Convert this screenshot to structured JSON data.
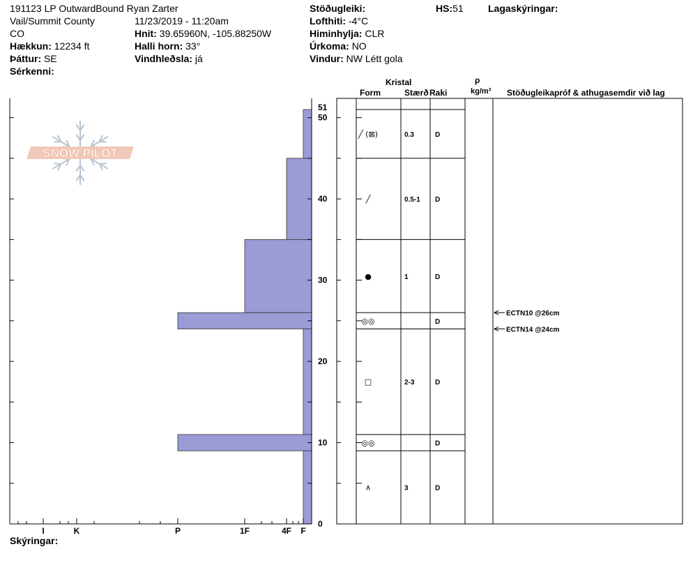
{
  "header": {
    "title": "191123 LP OutwardBound Ryan Zarter",
    "location": "Vail/Summit County",
    "state": "CO",
    "elevation_label": "Hækkun:",
    "elevation_value": "12234 ft",
    "aspect_label": "Þáttur:",
    "aspect_value": "SE",
    "features_label": "Sérkenni:",
    "datetime": "11/23/2019 - 11:20am",
    "coords_label": "Hnit:",
    "coords_value": "39.65960N, -105.88250W",
    "slope_label": "Halli horn:",
    "slope_value": "33°",
    "wind_loading_label": "Vindhleðsla:",
    "wind_loading_value": "já",
    "stability_label": "Stöðugleiki:",
    "air_temp_label": "Lofthiti:",
    "air_temp_value": "-4°C",
    "sky_label": "Himinhylja:",
    "sky_value": "CLR",
    "precip_label": "Úrkoma:",
    "precip_value": "NO",
    "wind_label": "Vindur:",
    "wind_value": "NW Létt gola",
    "hs_label": "HS:",
    "hs_value": "51",
    "layer_notes_label": "Lagaskýringar:",
    "notes_label": "Skýringar:"
  },
  "logo": {
    "text": "SNOW PILOT"
  },
  "table_header": {
    "crystal": "Kristal",
    "form": "Form",
    "size": "Stærð",
    "moisture": "Raki",
    "rho": "ρ",
    "density_unit": "kg/m³",
    "tests": "Stöðugleikapróf & athugasemdir við lag"
  },
  "chart_data": {
    "type": "bar",
    "title": "",
    "ylabel": "",
    "xlabel": "",
    "y_range": [
      0,
      51
    ],
    "y_ticks": [
      {
        "value": 0,
        "label": "0"
      },
      {
        "value": 10,
        "label": "10"
      },
      {
        "value": 20,
        "label": "20"
      },
      {
        "value": 30,
        "label": "30"
      },
      {
        "value": 40,
        "label": "40"
      },
      {
        "value": 50,
        "label": "50"
      },
      {
        "value": 51,
        "label": "51"
      }
    ],
    "hardness_scale": [
      "I",
      "K",
      "P",
      "1F",
      "4F",
      "F"
    ],
    "layers": [
      {
        "top": 51,
        "bottom": 45,
        "hardness": "F",
        "form": "╱ (⊠)",
        "size": "0.3",
        "moisture": "D"
      },
      {
        "top": 45,
        "bottom": 35,
        "hardness": "4F",
        "form": "╱",
        "size": "0.5-1",
        "moisture": "D"
      },
      {
        "top": 35,
        "bottom": 26,
        "hardness": "1F",
        "form": "●",
        "size": "1",
        "moisture": "D"
      },
      {
        "top": 26,
        "bottom": 24,
        "hardness": "P",
        "form": "◎◎",
        "size": "",
        "moisture": "D"
      },
      {
        "top": 24,
        "bottom": 11,
        "hardness": "F",
        "form": "□",
        "size": "2-3",
        "moisture": "D"
      },
      {
        "top": 11,
        "bottom": 9,
        "hardness": "P",
        "form": "◎◎",
        "size": "",
        "moisture": "D"
      },
      {
        "top": 9,
        "bottom": 0,
        "hardness": "F",
        "form": "∧",
        "size": "3",
        "moisture": "D"
      }
    ],
    "tests": [
      {
        "depth": 26,
        "label": "ECTN10 @26cm"
      },
      {
        "depth": 24,
        "label": "ECTN14 @24cm"
      }
    ],
    "colors": {
      "bar": "#9b9bd6",
      "bar_stroke": "#333333",
      "logo_fill": "#f2c9b8",
      "logo_snow": "#b8c4d0"
    }
  }
}
